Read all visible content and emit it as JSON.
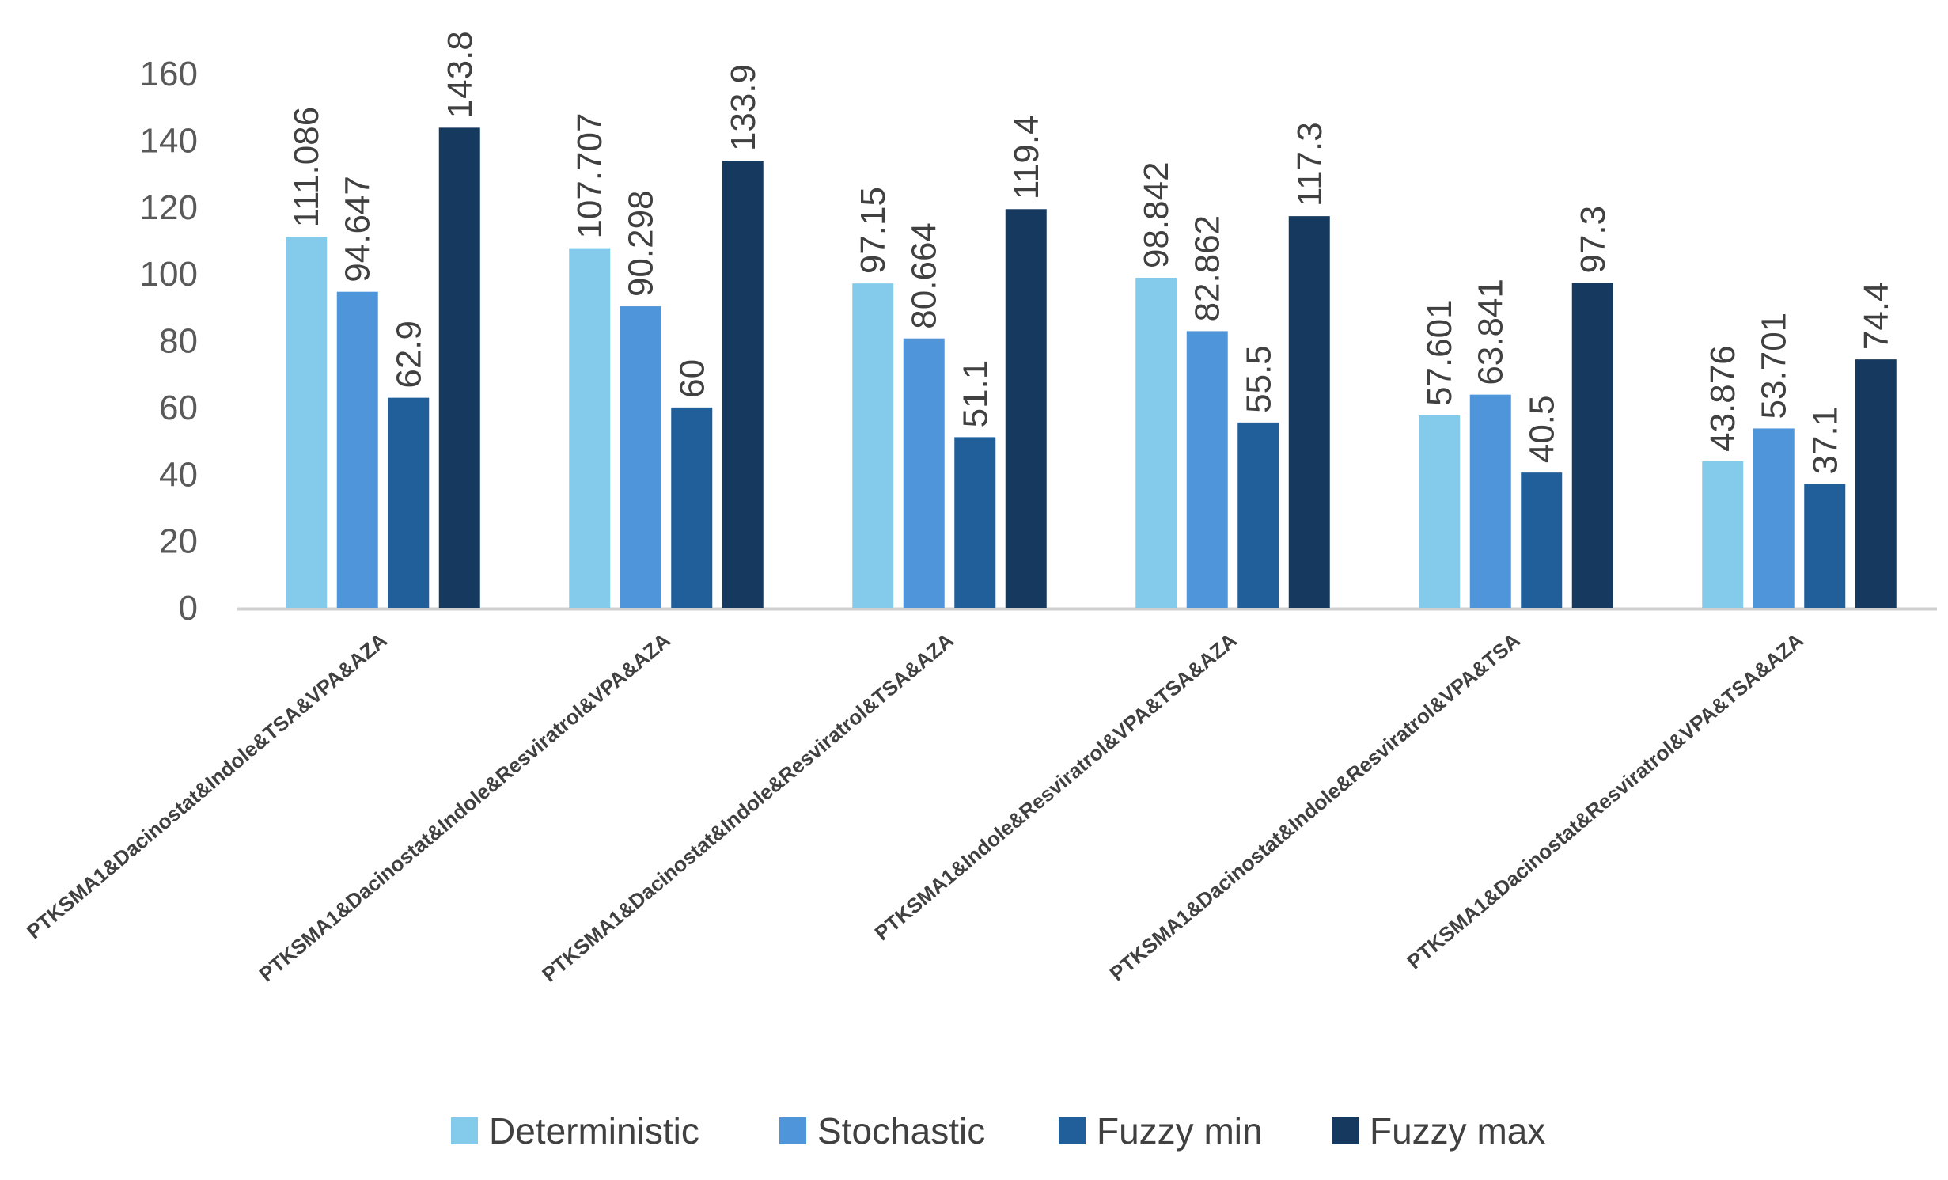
{
  "chart_data": {
    "type": "bar",
    "title": "",
    "xlabel": "",
    "ylabel": "",
    "ylim": [
      0,
      160
    ],
    "yticks": [
      0,
      20,
      40,
      60,
      80,
      100,
      120,
      140,
      160
    ],
    "grid": false,
    "legend_position": "bottom",
    "categories": [
      "PTKSMA1&Dacinostat&Indole&TSA&VPA&AZA",
      "PTKSMA1&Dacinostat&Indole&Resviratrol&VPA&AZA",
      "PTKSMA1&Dacinostat&Indole&Resviratrol&TSA&AZA",
      "PTKSMA1&Indole&Resviratrol&VPA&TSA&AZA",
      "PTKSMA1&Dacinostat&Indole&Resviratrol&VPA&TSA",
      "PTKSMA1&Dacinostat&Resviratrol&VPA&TSA&AZA"
    ],
    "series": [
      {
        "name": "Deterministic",
        "color": "#83CAEB",
        "values": [
          111.086,
          107.707,
          97.15,
          98.842,
          57.601,
          43.876
        ],
        "labels": [
          "111.086",
          "107.707",
          "97.15",
          "98.842",
          "57.601",
          "43.876"
        ]
      },
      {
        "name": "Stochastic",
        "color": "#4F95D9",
        "values": [
          94.647,
          90.298,
          80.664,
          82.862,
          63.841,
          53.701
        ],
        "labels": [
          "94.647",
          "90.298",
          "80.664",
          "82.862",
          "63.841",
          "53.701"
        ]
      },
      {
        "name": "Fuzzy min",
        "color": "#215F9A",
        "values": [
          62.9,
          60,
          51.1,
          55.5,
          40.5,
          37.1
        ],
        "labels": [
          "62.9",
          "60",
          "51.1",
          "55.5",
          "40.5",
          "37.1"
        ]
      },
      {
        "name": "Fuzzy max",
        "color": "#163A5F",
        "values": [
          143.8,
          133.9,
          119.4,
          117.3,
          97.3,
          74.4
        ],
        "labels": [
          "143.8",
          "133.9",
          "119.4",
          "117.3",
          "97.3",
          "74.4"
        ]
      }
    ]
  }
}
